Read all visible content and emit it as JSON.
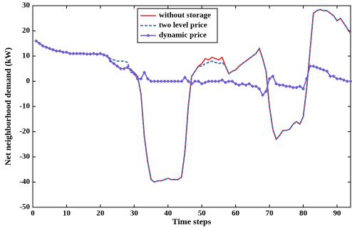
{
  "chart_data": {
    "type": "line",
    "xlabel": "Time steps",
    "ylabel": "Net neighborhood demand (kW)",
    "x": [
      1,
      2,
      3,
      4,
      5,
      6,
      7,
      8,
      9,
      10,
      11,
      12,
      13,
      14,
      15,
      16,
      17,
      18,
      19,
      20,
      21,
      22,
      23,
      24,
      25,
      26,
      27,
      28,
      29,
      30,
      31,
      32,
      33,
      34,
      35,
      36,
      37,
      38,
      39,
      40,
      41,
      42,
      43,
      44,
      45,
      46,
      47,
      48,
      49,
      50,
      51,
      52,
      53,
      54,
      55,
      56,
      57,
      58,
      59,
      60,
      61,
      62,
      63,
      64,
      65,
      66,
      67,
      68,
      69,
      70,
      71,
      72,
      73,
      74,
      75,
      76,
      77,
      78,
      79,
      80,
      81,
      82,
      83,
      84,
      85,
      86,
      87,
      88,
      89,
      90,
      91,
      92,
      93,
      94
    ],
    "series": [
      {
        "name": "without storage",
        "color": "#e8262a",
        "dash": false,
        "marker": false,
        "values": [
          16,
          15,
          14,
          13.5,
          13,
          12.5,
          12,
          12,
          11.5,
          11.5,
          11,
          11,
          11,
          11,
          11,
          10.8,
          10.8,
          11,
          10.7,
          11,
          10.5,
          10,
          8,
          7,
          6,
          5,
          5,
          5.5,
          4.5,
          3.5,
          2,
          -5,
          -22,
          -32,
          -39,
          -40,
          -39.5,
          -39.5,
          -39,
          -38.5,
          -39,
          -39,
          -39,
          -38,
          -28,
          -10,
          2,
          4,
          6,
          7,
          9,
          8.5,
          9.5,
          9,
          8.5,
          9.5,
          6,
          3,
          4,
          4.5,
          6,
          7,
          8,
          9,
          10,
          11,
          13,
          9,
          4,
          -10,
          -19,
          -23,
          -21.5,
          -19.5,
          -19.5,
          -19,
          -17,
          -16,
          -17,
          -14,
          -3,
          12,
          27,
          28,
          28.5,
          28,
          28,
          27,
          26,
          24,
          25,
          23,
          21,
          19
        ]
      },
      {
        "name": "two level price",
        "color": "#2b5fb3",
        "dash": true,
        "marker": false,
        "values": [
          16,
          15,
          14,
          13.5,
          13,
          12.5,
          12,
          12,
          11.5,
          11.5,
          11,
          11,
          11,
          11,
          11,
          10.8,
          10.8,
          11,
          10.7,
          11,
          10.5,
          10,
          9,
          8.5,
          8,
          8,
          8,
          7.5,
          3.5,
          3.5,
          2,
          -5,
          -22,
          -32,
          -39,
          -40,
          -39.5,
          -39.5,
          -39,
          -38.5,
          -39,
          -39,
          -39,
          -38,
          -28,
          -10,
          2,
          4,
          6,
          6,
          7,
          7.5,
          8,
          7.5,
          7,
          7.5,
          6,
          3,
          4,
          4.5,
          6,
          7,
          8,
          9,
          10,
          11,
          13,
          9,
          4,
          -10,
          -19,
          -23,
          -21.5,
          -19.5,
          -19.5,
          -19,
          -17,
          -16,
          -17,
          -14,
          -3,
          12,
          27,
          28,
          28.5,
          28,
          28,
          27,
          26,
          24,
          25,
          23,
          21,
          19
        ]
      },
      {
        "name": "dynamic price",
        "color": "#6a5acd",
        "dash": false,
        "marker": true,
        "values": [
          16,
          15,
          14,
          13.5,
          13,
          12.5,
          12,
          12,
          11.5,
          11.5,
          11,
          11,
          11,
          11,
          11,
          10.8,
          10.8,
          11,
          10.7,
          11,
          10.5,
          10,
          8,
          7,
          6,
          5,
          5,
          5.5,
          4.5,
          3,
          1,
          1,
          3.5,
          1,
          0,
          0,
          0,
          0,
          0,
          0,
          0,
          0,
          0,
          0,
          1.5,
          0,
          -1,
          0,
          0,
          -1,
          -0.5,
          0,
          0,
          0,
          0,
          0.5,
          -0.5,
          0,
          0,
          -1,
          -1.5,
          -1,
          -1.5,
          -1,
          -2,
          -2,
          -3,
          -5.5,
          -4,
          1,
          2,
          -1,
          -1.5,
          -1.5,
          -2,
          -2,
          -2.5,
          -2.5,
          -2,
          -3,
          1,
          6,
          6,
          5.5,
          5,
          4.5,
          4,
          2,
          2,
          1,
          1,
          0.5,
          0,
          0
        ]
      }
    ],
    "xlim": [
      0,
      94
    ],
    "xticks": [
      0,
      10,
      20,
      30,
      40,
      50,
      60,
      70,
      80,
      90
    ],
    "ylim": [
      -50,
      30
    ],
    "yticks": [
      -50,
      -40,
      -30,
      -20,
      -10,
      0,
      10,
      20,
      30
    ],
    "legend": "upper center",
    "grid": false
  }
}
